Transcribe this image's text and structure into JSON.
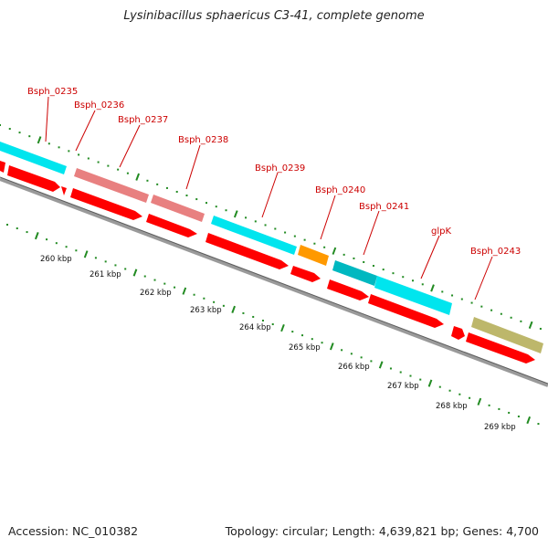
{
  "title": "Lysinibacillus sphaericus C3-41, complete genome",
  "footer": {
    "accession": "Accession: NC_010382",
    "summary": "Topology: circular; Length: 4,639,821 bp; Genes: 4,700"
  },
  "colors": {
    "background": "#ffffff",
    "label": "#cc0000",
    "cds": "#ff0000",
    "dots": "#228B22",
    "backbone": "#888888",
    "cyan": "#00e5ee",
    "pink": "#e88080",
    "orange": "#ff9900",
    "teal": "#00b8c0",
    "khaki": "#bdb76b"
  },
  "gene_labels": [
    {
      "name": "Bsph_0235"
    },
    {
      "name": "Bsph_0236"
    },
    {
      "name": "Bsph_0237"
    },
    {
      "name": "Bsph_0238"
    },
    {
      "name": "Bsph_0239"
    },
    {
      "name": "Bsph_0240"
    },
    {
      "name": "Bsph_0241"
    },
    {
      "name": "glpK"
    },
    {
      "name": "Bsph_0243"
    }
  ],
  "kbp_labels": [
    "260 kbp",
    "261 kbp",
    "262 kbp",
    "263 kbp",
    "264 kbp",
    "265 kbp",
    "266 kbp",
    "267 kbp",
    "268 kbp",
    "269 kbp"
  ]
}
